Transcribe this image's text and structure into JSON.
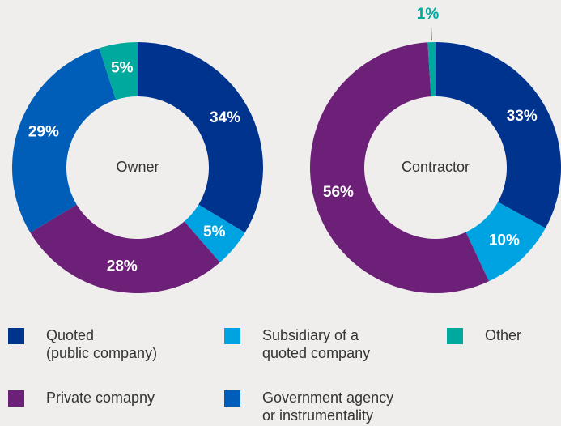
{
  "chart_data": [
    {
      "type": "pie",
      "center_label": "Owner",
      "categories": [
        "Quoted\n(public company)",
        "Subsidiary of a\nquoted company",
        "Private comapny",
        "Government agency\nor instrumentality",
        "Other"
      ],
      "values": [
        34,
        5,
        28,
        29,
        5
      ],
      "value_labels": [
        "34%",
        "5%",
        "28%",
        "29%",
        "5%"
      ],
      "colors": [
        "#00338d",
        "#00a3e1",
        "#6d2077",
        "#005eb8",
        "#00a99d"
      ]
    },
    {
      "type": "pie",
      "center_label": "Contractor",
      "categories": [
        "Quoted\n(public company)",
        "Subsidiary of a\nquoted company",
        "Private comapny",
        "Other"
      ],
      "values": [
        33,
        10,
        56,
        1
      ],
      "value_labels": [
        "33%",
        "10%",
        "56%",
        "1%"
      ],
      "colors": [
        "#00338d",
        "#00a3e1",
        "#6d2077",
        "#00a99d"
      ]
    }
  ]
}
